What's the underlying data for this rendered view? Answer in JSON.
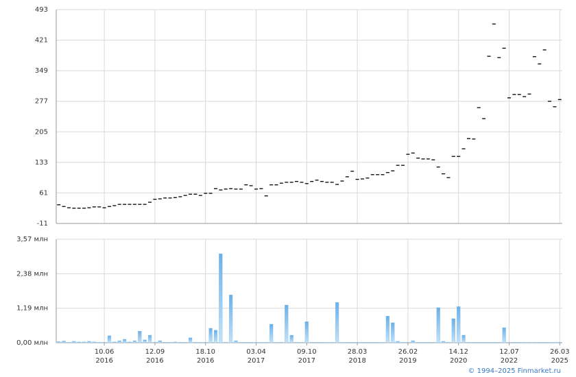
{
  "chart_data": [
    {
      "type": "dash",
      "color": "#000000",
      "values": [
        33,
        29,
        26,
        25,
        25,
        25,
        26,
        28,
        28,
        26,
        29,
        31,
        34,
        34,
        34,
        34,
        34,
        34,
        39,
        46,
        47,
        49,
        49,
        50,
        52,
        55,
        58,
        58,
        55,
        60,
        60,
        71,
        68,
        70,
        71,
        70,
        70,
        80,
        78,
        70,
        71,
        54,
        80,
        80,
        84,
        86,
        86,
        88,
        86,
        83,
        88,
        91,
        88,
        86,
        86,
        81,
        89,
        99,
        112,
        93,
        94,
        96,
        104,
        104,
        104,
        109,
        113,
        126,
        126,
        152,
        155,
        143,
        141,
        141,
        139,
        122,
        106,
        97,
        147,
        147,
        165,
        189,
        188,
        262,
        236,
        383,
        459,
        380,
        402,
        285,
        293,
        293,
        288,
        294,
        382,
        365,
        398,
        277,
        264,
        281
      ],
      "ylim": [
        -11,
        493
      ],
      "yticks": [
        -11,
        61,
        133,
        205,
        277,
        349,
        421,
        493
      ],
      "grid": true
    },
    {
      "type": "bar",
      "color": "#7dbbec",
      "categories": [
        null,
        null,
        null,
        null,
        null,
        null,
        null,
        null,
        null,
        "10.06\n2016",
        null,
        null,
        null,
        null,
        null,
        null,
        null,
        null,
        null,
        "12.09\n2016",
        null,
        null,
        null,
        null,
        null,
        null,
        null,
        null,
        null,
        "18.10\n2016",
        null,
        null,
        null,
        null,
        null,
        null,
        null,
        null,
        null,
        "03.04\n2017",
        null,
        null,
        null,
        null,
        null,
        null,
        null,
        null,
        null,
        "09.10\n2017",
        null,
        null,
        null,
        null,
        null,
        null,
        null,
        null,
        null,
        "28.03\n2018",
        null,
        null,
        null,
        null,
        null,
        null,
        null,
        null,
        null,
        "26.02\n2019",
        null,
        null,
        null,
        null,
        null,
        null,
        null,
        null,
        null,
        "14.12\n2020",
        null,
        null,
        null,
        null,
        null,
        null,
        null,
        null,
        null,
        "12.07\n2022",
        null,
        null,
        null,
        null,
        null,
        null,
        null,
        null,
        null,
        "26.03\n2025"
      ],
      "values": [
        0.04,
        0.06,
        0.02,
        0.05,
        0.03,
        0.03,
        0.05,
        0.03,
        0.02,
        0.02,
        0.24,
        0.03,
        0.07,
        0.12,
        0.03,
        0.07,
        0.4,
        0.1,
        0.26,
        0.02,
        0.07,
        0.02,
        0.02,
        0.03,
        0.02,
        0.02,
        0.17,
        0.02,
        0.02,
        0.02,
        0.5,
        0.43,
        3.07,
        0.02,
        1.65,
        0.07,
        0.02,
        0.02,
        0.02,
        0.02,
        0.02,
        0.02,
        0.64,
        0.02,
        0.02,
        1.3,
        0.26,
        0.02,
        0.02,
        0.73,
        0.02,
        0.02,
        0.02,
        0.02,
        0.02,
        1.39,
        0.02,
        0.02,
        0.02,
        0.02,
        0.02,
        0.02,
        0.02,
        0.02,
        0.02,
        0.92,
        0.69,
        0.05,
        0.02,
        0.02,
        0.07,
        0.02,
        0.02,
        0.02,
        0.02,
        1.21,
        0.05,
        0.02,
        0.83,
        1.25,
        0.26,
        0.02,
        0.02,
        0.02,
        0.02,
        0.02,
        0.02,
        0.02,
        0.52,
        0.02,
        0.02,
        0.02,
        0.02,
        0.02,
        0.02,
        0.02,
        0.02,
        0.02,
        0.02,
        0.02
      ],
      "ylim": [
        0,
        3.57
      ],
      "yticks": [
        {
          "value": 0,
          "label": "0,00 млн"
        },
        {
          "value": 1.19,
          "label": "1,19 млн"
        },
        {
          "value": 2.38,
          "label": "2,38 млн"
        },
        {
          "value": 3.57,
          "label": "3,57 млн"
        }
      ],
      "grid": true,
      "footer": "© 1994–2025 Finmarket.ru"
    }
  ]
}
